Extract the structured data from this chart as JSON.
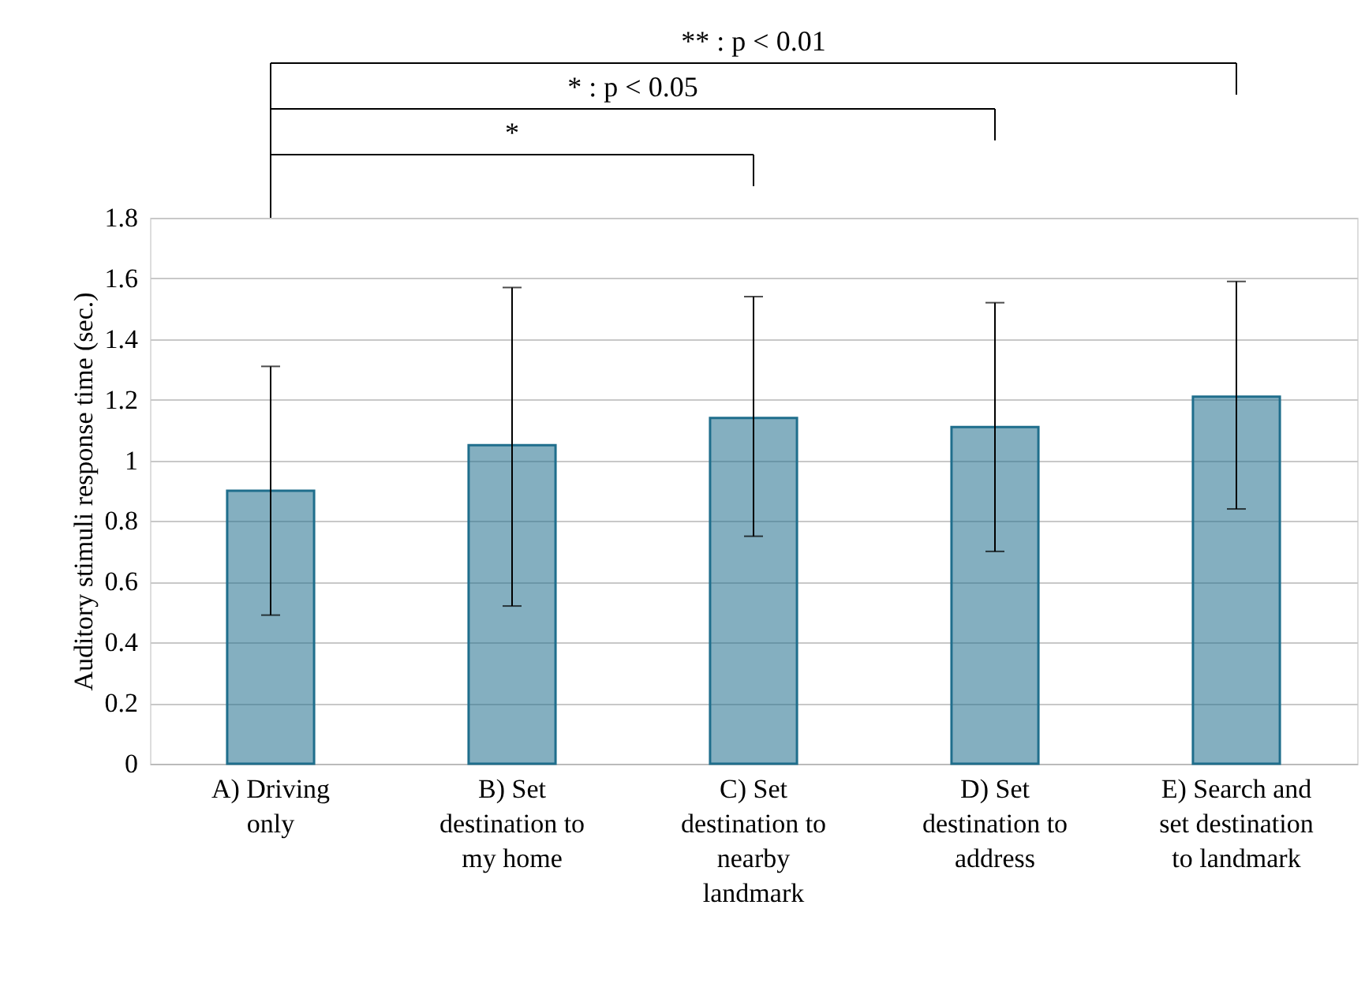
{
  "chart_data": {
    "type": "bar",
    "ylabel": "Auditory stimuli response time (sec.)",
    "categories": [
      "A) Driving\nonly",
      "B) Set\ndestination to\nmy home",
      "C) Set\ndestination to\nnearby\nlandmark",
      "D) Set\ndestination to\naddress",
      "E) Search and\nset destination\nto landmark"
    ],
    "values": [
      0.9,
      1.05,
      1.14,
      1.11,
      1.21
    ],
    "errors": [
      [
        0.49,
        1.31
      ],
      [
        0.52,
        1.57
      ],
      [
        0.75,
        1.54
      ],
      [
        0.7,
        1.52
      ],
      [
        0.84,
        1.59
      ]
    ],
    "color": "#1f6e8c",
    "ylim": [
      0,
      1.8
    ],
    "yticks": [
      0,
      0.2,
      0.4,
      0.6,
      0.8,
      1,
      1.2,
      1.4,
      1.6,
      1.8
    ],
    "grid": "y",
    "annotations": [
      "** : p < 0.01",
      "* : p < 0.05",
      "*"
    ]
  }
}
